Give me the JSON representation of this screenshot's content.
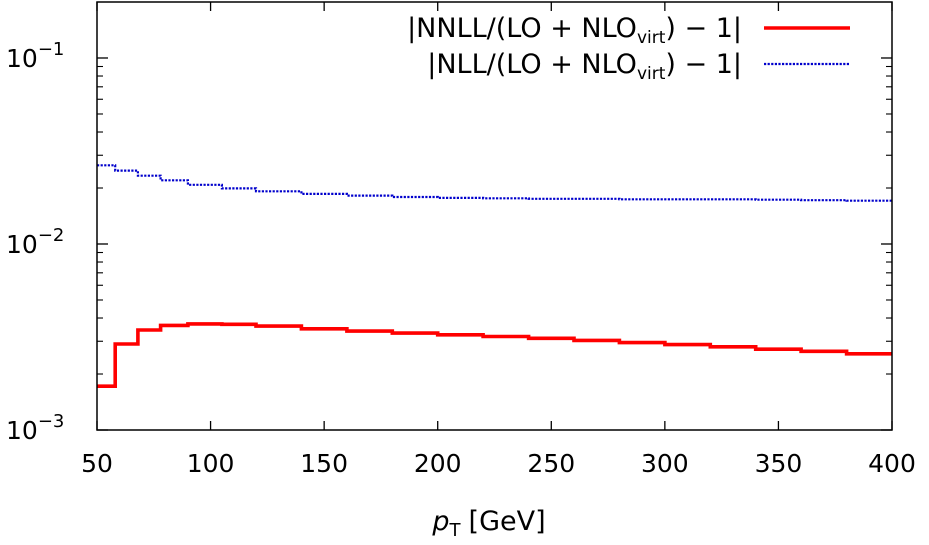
{
  "chart_data": {
    "type": "line",
    "step": true,
    "xlabel_var": "p",
    "xlabel_sub": "T",
    "xlabel_unit": "[GeV]",
    "xlim": [
      50,
      400
    ],
    "ylim": [
      0.001,
      0.2
    ],
    "ylog": true,
    "grid": false,
    "legend_position": "top-right",
    "x_ticks": [
      50,
      100,
      150,
      200,
      250,
      300,
      350,
      400
    ],
    "y_ticks": [
      {
        "value": 0.001,
        "base": "10",
        "exp": "−3"
      },
      {
        "value": 0.01,
        "base": "10",
        "exp": "−2"
      },
      {
        "value": 0.1,
        "base": "10",
        "exp": "−1"
      }
    ],
    "x_edges": [
      50,
      58,
      68,
      78,
      90,
      105,
      120,
      140,
      160,
      180,
      200,
      220,
      240,
      260,
      280,
      300,
      320,
      340,
      360,
      380,
      400
    ],
    "series": [
      {
        "name": "|NNLL/(LO + NLO_virt) − 1|",
        "legend_pre": "|NNLL/(LO + NLO",
        "legend_sub": "virt",
        "legend_post": ") − 1|",
        "color": "#ff0000",
        "style": "solid",
        "values": [
          0.00172,
          0.0029,
          0.00345,
          0.00365,
          0.00372,
          0.0037,
          0.00362,
          0.0035,
          0.0034,
          0.00332,
          0.00325,
          0.00318,
          0.00311,
          0.00303,
          0.00295,
          0.00288,
          0.0028,
          0.00272,
          0.00265,
          0.00257
        ]
      },
      {
        "name": "|NLL/(LO + NLO_virt) − 1|",
        "legend_pre": "|NLL/(LO + NLO",
        "legend_sub": "virt",
        "legend_post": ") − 1|",
        "color": "#0000cc",
        "style": "dotted",
        "values": [
          0.0265,
          0.0248,
          0.0233,
          0.022,
          0.0208,
          0.0199,
          0.0192,
          0.0186,
          0.0182,
          0.0179,
          0.0177,
          0.0176,
          0.0175,
          0.0175,
          0.0174,
          0.0174,
          0.0174,
          0.0173,
          0.0172,
          0.0171
        ]
      }
    ]
  }
}
